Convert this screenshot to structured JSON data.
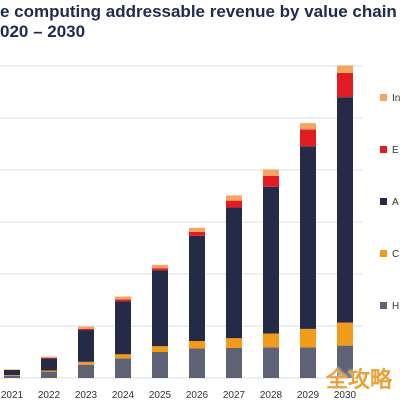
{
  "title": {
    "line1": "e computing addressable revenue by value chain com",
    "line2": "020 – 2030"
  },
  "watermark": "全攻略",
  "chart_data": {
    "type": "bar",
    "stacked": true,
    "categories": [
      "2021",
      "2022",
      "2023",
      "2024",
      "2025",
      "2026",
      "2027",
      "2028",
      "2029",
      "2030"
    ],
    "series": [
      {
        "name": "H",
        "color": "#5f6275",
        "values": [
          0.2,
          0.55,
          1.15,
          1.7,
          2.25,
          2.55,
          2.6,
          2.65,
          2.65,
          2.8
        ]
      },
      {
        "name": "C",
        "color": "#f29a1a",
        "values": [
          0.05,
          0.1,
          0.25,
          0.35,
          0.5,
          0.65,
          0.85,
          1.2,
          1.6,
          2.0
        ]
      },
      {
        "name": "A",
        "color": "#252a47",
        "values": [
          0.45,
          1.05,
          2.75,
          4.6,
          6.55,
          9.1,
          11.3,
          12.7,
          15.8,
          19.5
        ]
      },
      {
        "name": "E",
        "color": "#e31b23",
        "values": [
          0.0,
          0.05,
          0.1,
          0.15,
          0.2,
          0.35,
          0.6,
          0.95,
          1.45,
          2.1
        ]
      },
      {
        "name": "In",
        "color": "#f5a55f",
        "values": [
          0.05,
          0.1,
          0.2,
          0.25,
          0.3,
          0.35,
          0.45,
          0.55,
          0.55,
          0.65
        ]
      }
    ],
    "ylim": [
      0,
      27
    ],
    "grid": true,
    "legend_position": "right"
  }
}
